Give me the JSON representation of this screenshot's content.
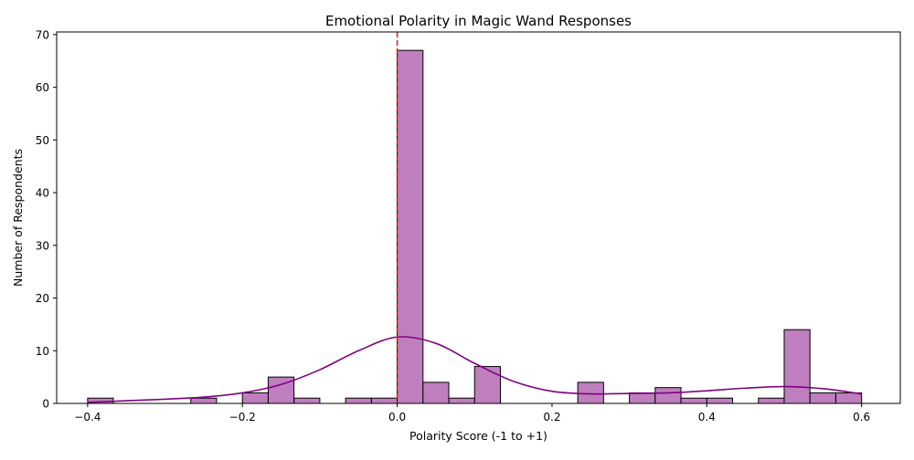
{
  "chart_data": {
    "type": "bar",
    "title": "Emotional Polarity in Magic Wand Responses",
    "xlabel": "Polarity Score (-1 to +1)",
    "ylabel": "Number of Respondents",
    "xlim": [
      -0.44,
      0.65
    ],
    "ylim": [
      0,
      70.5
    ],
    "x_ticks": [
      -0.4,
      -0.2,
      0.0,
      0.2,
      0.4,
      0.6
    ],
    "x_tick_labels": [
      "−0.4",
      "−0.2",
      "0.0",
      "0.2",
      "0.4",
      "0.6"
    ],
    "y_ticks": [
      0,
      10,
      20,
      30,
      40,
      50,
      60,
      70
    ],
    "y_tick_labels": [
      "0",
      "10",
      "20",
      "30",
      "40",
      "50",
      "60",
      "70"
    ],
    "bin_width": 0.0333,
    "bins": [
      {
        "start": -0.4,
        "count": 1
      },
      {
        "start": -0.3667,
        "count": 0
      },
      {
        "start": -0.3333,
        "count": 0
      },
      {
        "start": -0.3,
        "count": 0
      },
      {
        "start": -0.2667,
        "count": 1
      },
      {
        "start": -0.2333,
        "count": 0
      },
      {
        "start": -0.2,
        "count": 2
      },
      {
        "start": -0.1667,
        "count": 5
      },
      {
        "start": -0.1333,
        "count": 1
      },
      {
        "start": -0.1,
        "count": 0
      },
      {
        "start": -0.0667,
        "count": 1
      },
      {
        "start": -0.0333,
        "count": 1
      },
      {
        "start": 0.0,
        "count": 67
      },
      {
        "start": 0.0333,
        "count": 4
      },
      {
        "start": 0.0667,
        "count": 1
      },
      {
        "start": 0.1,
        "count": 7
      },
      {
        "start": 0.1333,
        "count": 0
      },
      {
        "start": 0.1667,
        "count": 0
      },
      {
        "start": 0.2,
        "count": 0
      },
      {
        "start": 0.2333,
        "count": 4
      },
      {
        "start": 0.2667,
        "count": 0
      },
      {
        "start": 0.3,
        "count": 2
      },
      {
        "start": 0.3333,
        "count": 3
      },
      {
        "start": 0.3667,
        "count": 1
      },
      {
        "start": 0.4,
        "count": 1
      },
      {
        "start": 0.4333,
        "count": 0
      },
      {
        "start": 0.4667,
        "count": 1
      },
      {
        "start": 0.5,
        "count": 14
      },
      {
        "start": 0.5333,
        "count": 2
      },
      {
        "start": 0.5667,
        "count": 2
      }
    ],
    "kde_curve": {
      "x": [
        -0.4,
        -0.35,
        -0.3,
        -0.25,
        -0.2,
        -0.15,
        -0.1,
        -0.05,
        0.0,
        0.05,
        0.1,
        0.15,
        0.2,
        0.25,
        0.3,
        0.35,
        0.4,
        0.45,
        0.5,
        0.55,
        0.6
      ],
      "y": [
        0.2,
        0.5,
        0.8,
        1.2,
        2.0,
        3.6,
        6.4,
        10.0,
        12.6,
        11.4,
        7.6,
        4.2,
        2.3,
        1.8,
        1.9,
        2.0,
        2.4,
        2.9,
        3.2,
        2.8,
        1.8
      ]
    },
    "reference_line": {
      "x": 0.0,
      "style": "dashed"
    },
    "grid": false,
    "colors": {
      "bar_fill": "#bf7fbf",
      "bar_edge": "#000000",
      "kde_line": "#800080",
      "reference_line": "#d62728"
    }
  }
}
